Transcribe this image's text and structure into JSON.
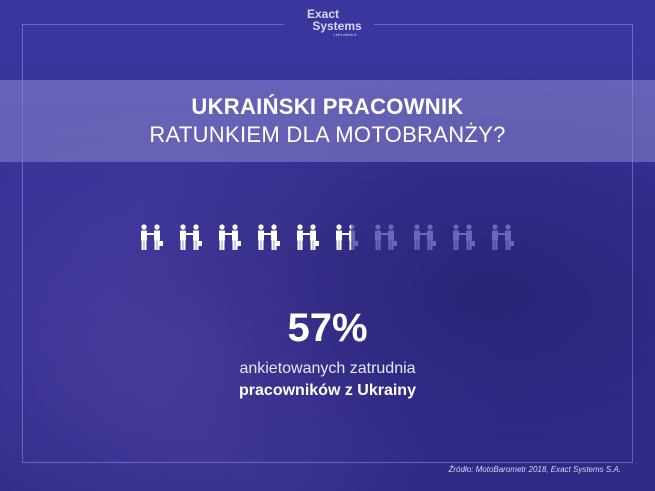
{
  "logo": {
    "line1": "Exact",
    "line2": "Systems",
    "tagline": "Let's check it"
  },
  "title": {
    "line1": "UKRAIŃSKI PRACOWNIK",
    "line2": "RATUNKIEM DLA MOTOBRANŻY?"
  },
  "pictogram": {
    "icon": "handshake-people-icon",
    "total": 10,
    "filled": 5.7,
    "filled_color": "#ffffff",
    "empty_color": "#6a66b8"
  },
  "stat": {
    "value": "57%",
    "line1": "ankietowanych zatrudnia",
    "line2": "pracowników z Ukrainy"
  },
  "source": "Źródło: MotoBarometr 2018, Exact Systems S.A."
}
